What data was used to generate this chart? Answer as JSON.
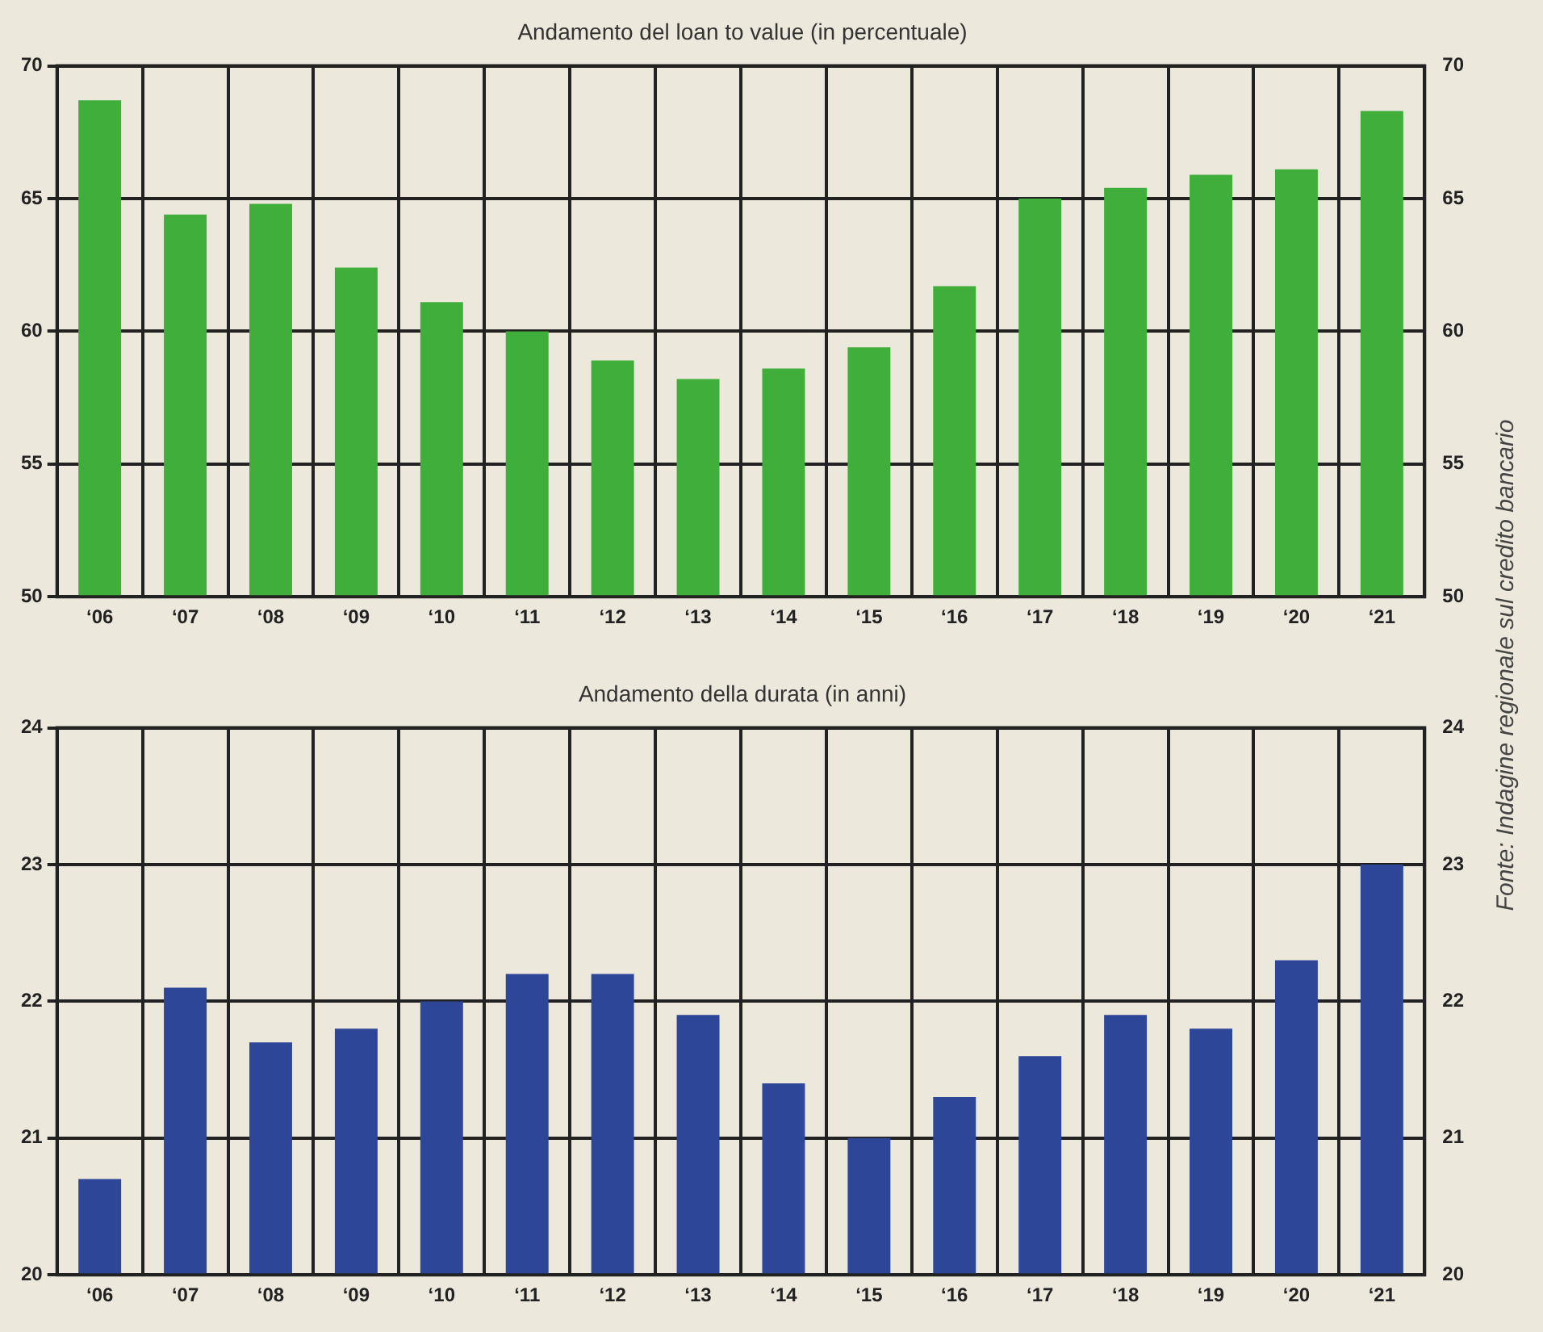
{
  "chart_data": [
    {
      "type": "bar",
      "title": "Andamento del loan to value (in percentuale)",
      "categories": [
        "‘06",
        "‘07",
        "‘08",
        "‘09",
        "‘10",
        "‘11",
        "‘12",
        "‘13",
        "‘14",
        "‘15",
        "‘16",
        "‘17",
        "‘18",
        "‘19",
        "‘20",
        "‘21"
      ],
      "values": [
        68.7,
        64.4,
        64.8,
        62.4,
        61.1,
        60.0,
        58.9,
        58.2,
        58.6,
        59.4,
        61.7,
        65.0,
        65.4,
        65.9,
        66.1,
        68.3
      ],
      "color": "#3fae3a",
      "ylim": [
        50,
        70
      ],
      "yticks": [
        50,
        55,
        60,
        65,
        70
      ],
      "y2lim": [
        50,
        70
      ],
      "y2ticks": [
        50,
        55,
        60,
        65,
        70
      ],
      "grid": true,
      "legend": false,
      "annotations": [
        "Fonte: Indagine regionale sul credito bancario"
      ]
    },
    {
      "type": "bar",
      "title": "Andamento della durata (in anni)",
      "categories": [
        "‘06",
        "‘07",
        "‘08",
        "‘09",
        "‘10",
        "‘11",
        "‘12",
        "‘13",
        "‘14",
        "‘15",
        "‘16",
        "‘17",
        "‘18",
        "‘19",
        "‘20",
        "‘21"
      ],
      "values": [
        20.7,
        22.1,
        21.7,
        21.8,
        22.0,
        22.2,
        22.2,
        21.9,
        21.4,
        21.0,
        21.3,
        21.6,
        21.9,
        21.8,
        22.3,
        23.0
      ],
      "color": "#2e4698",
      "ylim": [
        20,
        24
      ],
      "yticks": [
        20,
        21,
        22,
        23,
        24
      ],
      "y2lim": [
        20,
        24
      ],
      "y2ticks": [
        20,
        21,
        22,
        23,
        24
      ],
      "grid": true,
      "legend": false
    }
  ]
}
